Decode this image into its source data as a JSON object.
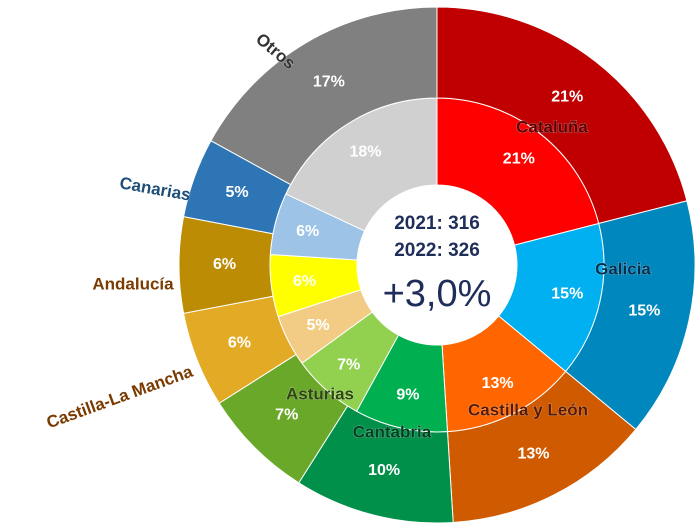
{
  "chart_data": {
    "type": "nested-donut",
    "categories": [
      "Cataluña",
      "Galicia",
      "Castilla y León",
      "Cantabria",
      "Asturias",
      "Castilla-La Mancha",
      "Andalucía",
      "Canarias",
      "Otros"
    ],
    "label_colors": [
      "#5a0000",
      "#003050",
      "#5a1a00",
      "#003f20",
      "#2f4512",
      "#7a3a00",
      "#7a3a00",
      "#1f4e79",
      "#333333"
    ],
    "series": [
      {
        "ring": "inner",
        "values": [
          21,
          15,
          13,
          9,
          7,
          5,
          6,
          6,
          18
        ],
        "value_labels": [
          "21%",
          "15%",
          "13%",
          "9%",
          "7%",
          "5%",
          "6%",
          "6%",
          "18%"
        ],
        "colors": [
          "#ff0000",
          "#00b0f0",
          "#ff6600",
          "#00b050",
          "#92d050",
          "#f2cc85",
          "#ffff00",
          "#9dc3e6",
          "#d0d0d0"
        ]
      },
      {
        "ring": "outer",
        "values": [
          21,
          15,
          13,
          10,
          7,
          6,
          6,
          5,
          17
        ],
        "value_labels": [
          "21%",
          "15%",
          "13%",
          "10%",
          "7%",
          "6%",
          "6%",
          "5%",
          "17%"
        ],
        "colors": [
          "#c00000",
          "#0087bd",
          "#d05a00",
          "#00904a",
          "#6aa82a",
          "#e3aa25",
          "#bc8c05",
          "#2e75b6",
          "#808080"
        ]
      }
    ],
    "center": {
      "lines": [
        "2021: 316",
        "2022: 326"
      ],
      "change": "+3,0%"
    }
  }
}
